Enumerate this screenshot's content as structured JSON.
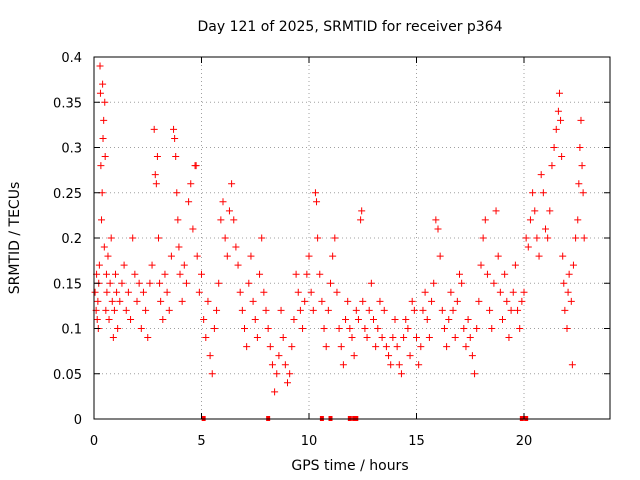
{
  "chart_data": {
    "type": "scatter",
    "title": "Day 121 of 2025, SRMTID for receiver p364",
    "xlabel": "GPS time / hours",
    "ylabel": "SRMTID / TECUs",
    "xlim": [
      0,
      24
    ],
    "ylim": [
      0,
      0.4
    ],
    "xticks": [
      0,
      5,
      10,
      15,
      20
    ],
    "xtick_labels": [
      "0",
      "5",
      "10",
      "15",
      "20"
    ],
    "yticks": [
      0,
      0.05,
      0.1,
      0.15,
      0.2,
      0.25,
      0.3,
      0.35,
      0.4
    ],
    "ytick_labels": [
      "0",
      "0.05",
      "0.1",
      "0.15",
      "0.2",
      "0.25",
      "0.3",
      "0.35",
      "0.4"
    ],
    "grid": true,
    "marker": "plus",
    "color": "#ff0000",
    "series": [
      {
        "name": "SRMTID",
        "points": [
          [
            0.05,
            0.14
          ],
          [
            0.1,
            0.12
          ],
          [
            0.12,
            0.16
          ],
          [
            0.15,
            0.11
          ],
          [
            0.18,
            0.13
          ],
          [
            0.2,
            0.1
          ],
          [
            0.22,
            0.15
          ],
          [
            0.25,
            0.17
          ],
          [
            0.28,
            0.39
          ],
          [
            0.3,
            0.36
          ],
          [
            0.32,
            0.28
          ],
          [
            0.35,
            0.22
          ],
          [
            0.38,
            0.25
          ],
          [
            0.4,
            0.37
          ],
          [
            0.42,
            0.31
          ],
          [
            0.45,
            0.33
          ],
          [
            0.48,
            0.19
          ],
          [
            0.5,
            0.35
          ],
          [
            0.52,
            0.29
          ],
          [
            0.55,
            0.12
          ],
          [
            0.58,
            0.16
          ],
          [
            0.6,
            0.14
          ],
          [
            0.65,
            0.18
          ],
          [
            0.7,
            0.11
          ],
          [
            0.75,
            0.15
          ],
          [
            0.8,
            0.2
          ],
          [
            0.85,
            0.13
          ],
          [
            0.9,
            0.09
          ],
          [
            0.95,
            0.12
          ],
          [
            1.0,
            0.16
          ],
          [
            1.05,
            0.14
          ],
          [
            1.1,
            0.1
          ],
          [
            1.2,
            0.13
          ],
          [
            1.3,
            0.15
          ],
          [
            1.4,
            0.17
          ],
          [
            1.5,
            0.12
          ],
          [
            1.6,
            0.14
          ],
          [
            1.7,
            0.11
          ],
          [
            1.8,
            0.2
          ],
          [
            1.9,
            0.16
          ],
          [
            2.0,
            0.13
          ],
          [
            2.1,
            0.15
          ],
          [
            2.2,
            0.1
          ],
          [
            2.3,
            0.14
          ],
          [
            2.4,
            0.12
          ],
          [
            2.5,
            0.09
          ],
          [
            2.6,
            0.15
          ],
          [
            2.7,
            0.17
          ],
          [
            2.8,
            0.32
          ],
          [
            2.85,
            0.27
          ],
          [
            2.9,
            0.26
          ],
          [
            2.95,
            0.29
          ],
          [
            3.0,
            0.2
          ],
          [
            3.05,
            0.15
          ],
          [
            3.1,
            0.13
          ],
          [
            3.2,
            0.11
          ],
          [
            3.3,
            0.16
          ],
          [
            3.4,
            0.14
          ],
          [
            3.5,
            0.12
          ],
          [
            3.6,
            0.18
          ],
          [
            3.7,
            0.32
          ],
          [
            3.75,
            0.31
          ],
          [
            3.8,
            0.29
          ],
          [
            3.85,
            0.25
          ],
          [
            3.9,
            0.22
          ],
          [
            3.95,
            0.19
          ],
          [
            4.0,
            0.16
          ],
          [
            4.1,
            0.13
          ],
          [
            4.2,
            0.17
          ],
          [
            4.3,
            0.15
          ],
          [
            4.4,
            0.24
          ],
          [
            4.5,
            0.26
          ],
          [
            4.6,
            0.21
          ],
          [
            4.7,
            0.28
          ],
          [
            4.75,
            0.28
          ],
          [
            4.8,
            0.18
          ],
          [
            4.9,
            0.14
          ],
          [
            5.0,
            0.16
          ],
          [
            5.1,
            0.11
          ],
          [
            5.2,
            0.09
          ],
          [
            5.3,
            0.13
          ],
          [
            5.4,
            0.07
          ],
          [
            5.5,
            0.05
          ],
          [
            5.6,
            0.1
          ],
          [
            5.7,
            0.12
          ],
          [
            5.8,
            0.15
          ],
          [
            5.9,
            0.22
          ],
          [
            6.0,
            0.24
          ],
          [
            6.1,
            0.2
          ],
          [
            6.2,
            0.18
          ],
          [
            6.3,
            0.23
          ],
          [
            6.4,
            0.26
          ],
          [
            6.5,
            0.22
          ],
          [
            6.6,
            0.19
          ],
          [
            6.7,
            0.17
          ],
          [
            6.8,
            0.14
          ],
          [
            6.9,
            0.12
          ],
          [
            7.0,
            0.1
          ],
          [
            7.1,
            0.08
          ],
          [
            7.2,
            0.15
          ],
          [
            7.3,
            0.18
          ],
          [
            7.4,
            0.13
          ],
          [
            7.5,
            0.11
          ],
          [
            7.6,
            0.09
          ],
          [
            7.7,
            0.16
          ],
          [
            7.8,
            0.2
          ],
          [
            7.9,
            0.14
          ],
          [
            8.0,
            0.12
          ],
          [
            8.1,
            0.1
          ],
          [
            8.2,
            0.08
          ],
          [
            8.3,
            0.06
          ],
          [
            8.4,
            0.03
          ],
          [
            8.5,
            0.05
          ],
          [
            8.6,
            0.07
          ],
          [
            8.7,
            0.12
          ],
          [
            8.8,
            0.09
          ],
          [
            8.9,
            0.06
          ],
          [
            9.0,
            0.04
          ],
          [
            9.1,
            0.05
          ],
          [
            9.2,
            0.08
          ],
          [
            9.3,
            0.11
          ],
          [
            9.4,
            0.16
          ],
          [
            9.5,
            0.14
          ],
          [
            9.6,
            0.12
          ],
          [
            9.7,
            0.1
          ],
          [
            9.8,
            0.13
          ],
          [
            9.9,
            0.16
          ],
          [
            10.0,
            0.18
          ],
          [
            10.1,
            0.14
          ],
          [
            10.2,
            0.12
          ],
          [
            10.3,
            0.25
          ],
          [
            10.35,
            0.24
          ],
          [
            10.4,
            0.2
          ],
          [
            10.5,
            0.16
          ],
          [
            10.6,
            0.13
          ],
          [
            10.7,
            0.1
          ],
          [
            10.8,
            0.08
          ],
          [
            10.9,
            0.12
          ],
          [
            11.0,
            0.15
          ],
          [
            11.1,
            0.18
          ],
          [
            11.2,
            0.2
          ],
          [
            11.3,
            0.14
          ],
          [
            11.4,
            0.1
          ],
          [
            11.5,
            0.08
          ],
          [
            11.6,
            0.06
          ],
          [
            11.7,
            0.11
          ],
          [
            11.8,
            0.13
          ],
          [
            11.9,
            0.1
          ],
          [
            12.0,
            0.09
          ],
          [
            12.1,
            0.07
          ],
          [
            12.2,
            0.12
          ],
          [
            12.3,
            0.11
          ],
          [
            12.4,
            0.22
          ],
          [
            12.45,
            0.23
          ],
          [
            12.5,
            0.13
          ],
          [
            12.6,
            0.1
          ],
          [
            12.7,
            0.09
          ],
          [
            12.8,
            0.12
          ],
          [
            12.9,
            0.15
          ],
          [
            13.0,
            0.11
          ],
          [
            13.1,
            0.08
          ],
          [
            13.2,
            0.1
          ],
          [
            13.3,
            0.13
          ],
          [
            13.4,
            0.09
          ],
          [
            13.5,
            0.12
          ],
          [
            13.6,
            0.08
          ],
          [
            13.7,
            0.07
          ],
          [
            13.8,
            0.06
          ],
          [
            13.9,
            0.09
          ],
          [
            14.0,
            0.11
          ],
          [
            14.1,
            0.08
          ],
          [
            14.2,
            0.06
          ],
          [
            14.3,
            0.05
          ],
          [
            14.4,
            0.09
          ],
          [
            14.5,
            0.11
          ],
          [
            14.6,
            0.1
          ],
          [
            14.7,
            0.07
          ],
          [
            14.8,
            0.13
          ],
          [
            14.9,
            0.12
          ],
          [
            15.0,
            0.09
          ],
          [
            15.1,
            0.06
          ],
          [
            15.2,
            0.08
          ],
          [
            15.3,
            0.12
          ],
          [
            15.4,
            0.14
          ],
          [
            15.5,
            0.11
          ],
          [
            15.6,
            0.09
          ],
          [
            15.7,
            0.13
          ],
          [
            15.8,
            0.15
          ],
          [
            15.9,
            0.22
          ],
          [
            16.0,
            0.21
          ],
          [
            16.1,
            0.18
          ],
          [
            16.2,
            0.12
          ],
          [
            16.3,
            0.1
          ],
          [
            16.4,
            0.08
          ],
          [
            16.5,
            0.11
          ],
          [
            16.6,
            0.14
          ],
          [
            16.7,
            0.12
          ],
          [
            16.8,
            0.09
          ],
          [
            16.9,
            0.13
          ],
          [
            17.0,
            0.16
          ],
          [
            17.1,
            0.15
          ],
          [
            17.2,
            0.1
          ],
          [
            17.3,
            0.08
          ],
          [
            17.4,
            0.11
          ],
          [
            17.5,
            0.09
          ],
          [
            17.6,
            0.07
          ],
          [
            17.7,
            0.05
          ],
          [
            17.8,
            0.1
          ],
          [
            17.9,
            0.13
          ],
          [
            18.0,
            0.17
          ],
          [
            18.1,
            0.2
          ],
          [
            18.2,
            0.22
          ],
          [
            18.3,
            0.16
          ],
          [
            18.4,
            0.12
          ],
          [
            18.5,
            0.1
          ],
          [
            18.6,
            0.15
          ],
          [
            18.7,
            0.23
          ],
          [
            18.8,
            0.18
          ],
          [
            18.9,
            0.14
          ],
          [
            19.0,
            0.11
          ],
          [
            19.1,
            0.16
          ],
          [
            19.2,
            0.13
          ],
          [
            19.3,
            0.09
          ],
          [
            19.4,
            0.12
          ],
          [
            19.5,
            0.14
          ],
          [
            19.6,
            0.17
          ],
          [
            19.7,
            0.12
          ],
          [
            19.8,
            0.1
          ],
          [
            19.9,
            0.13
          ],
          [
            20.0,
            0.14
          ],
          [
            20.1,
            0.2
          ],
          [
            20.2,
            0.19
          ],
          [
            20.3,
            0.22
          ],
          [
            20.4,
            0.25
          ],
          [
            20.5,
            0.23
          ],
          [
            20.6,
            0.2
          ],
          [
            20.7,
            0.18
          ],
          [
            20.8,
            0.27
          ],
          [
            20.9,
            0.25
          ],
          [
            21.0,
            0.21
          ],
          [
            21.1,
            0.2
          ],
          [
            21.2,
            0.23
          ],
          [
            21.3,
            0.28
          ],
          [
            21.4,
            0.3
          ],
          [
            21.5,
            0.32
          ],
          [
            21.6,
            0.34
          ],
          [
            21.65,
            0.36
          ],
          [
            21.7,
            0.33
          ],
          [
            21.75,
            0.29
          ],
          [
            21.8,
            0.18
          ],
          [
            21.85,
            0.15
          ],
          [
            21.9,
            0.12
          ],
          [
            22.0,
            0.1
          ],
          [
            22.05,
            0.14
          ],
          [
            22.1,
            0.16
          ],
          [
            22.2,
            0.13
          ],
          [
            22.25,
            0.06
          ],
          [
            22.3,
            0.17
          ],
          [
            22.4,
            0.2
          ],
          [
            22.5,
            0.22
          ],
          [
            22.55,
            0.26
          ],
          [
            22.6,
            0.3
          ],
          [
            22.65,
            0.33
          ],
          [
            22.7,
            0.28
          ],
          [
            22.75,
            0.25
          ],
          [
            22.8,
            0.2
          ]
        ]
      }
    ],
    "axis_markers": [
      5.1,
      8.1,
      10.6,
      11.0,
      11.9,
      12.1,
      12.2,
      19.9,
      20.1
    ]
  }
}
